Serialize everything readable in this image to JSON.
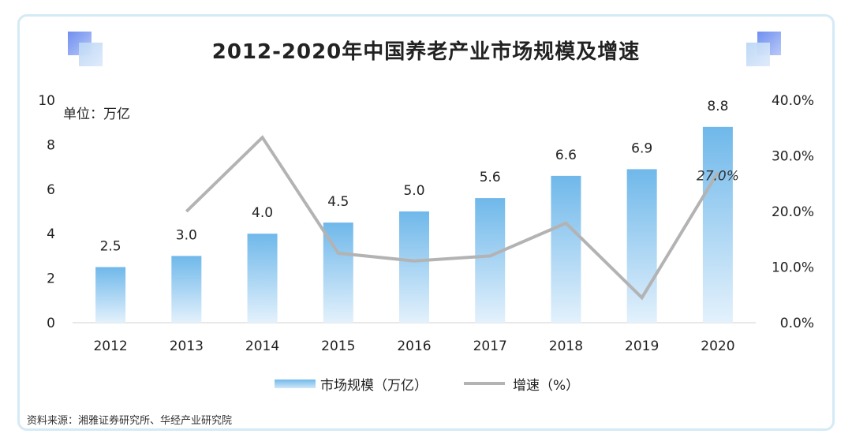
{
  "title": "2012-2020年中国养老产业市场规模及增速",
  "unit_label": "单位：万亿",
  "source": "资料来源：湘雅证券研究所、华经产业研究院",
  "legend": {
    "bar_label": "市场规模（万亿）",
    "line_label": "增速（%）"
  },
  "colors": {
    "bar_top": "#6fb8ea",
    "bar_bottom": "#e3f1fc",
    "line": "#b3b3b3",
    "frame": "#d4eaf6"
  },
  "chart_data": {
    "type": "bar",
    "categories": [
      "2012",
      "2013",
      "2014",
      "2015",
      "2016",
      "2017",
      "2018",
      "2019",
      "2020"
    ],
    "series": [
      {
        "name": "市场规模（万亿）",
        "type": "bar",
        "axis": "left",
        "values": [
          2.5,
          3.0,
          4.0,
          4.5,
          5.0,
          5.6,
          6.6,
          6.9,
          8.8
        ],
        "data_labels": [
          "2.5",
          "3.0",
          "4.0",
          "4.5",
          "5.0",
          "5.6",
          "6.6",
          "6.9",
          "8.8"
        ]
      },
      {
        "name": "增速（%）",
        "type": "line",
        "axis": "right",
        "values": [
          null,
          20.0,
          33.3,
          12.5,
          11.1,
          12.0,
          17.9,
          4.5,
          27.0
        ],
        "data_labels": [
          null,
          null,
          null,
          null,
          null,
          null,
          null,
          null,
          "27.0%"
        ]
      }
    ],
    "left_axis": {
      "ylim": [
        0,
        10
      ],
      "ticks": [
        0,
        2,
        4,
        6,
        8,
        10
      ],
      "tick_labels": [
        "0",
        "2",
        "4",
        "6",
        "8",
        "10"
      ]
    },
    "right_axis": {
      "ylim": [
        0,
        40
      ],
      "ticks": [
        0,
        10,
        20,
        30,
        40
      ],
      "tick_labels": [
        "0.0%",
        "10.0%",
        "20.0%",
        "30.0%",
        "40.0%"
      ]
    },
    "grid": false,
    "legend_position": "bottom"
  }
}
